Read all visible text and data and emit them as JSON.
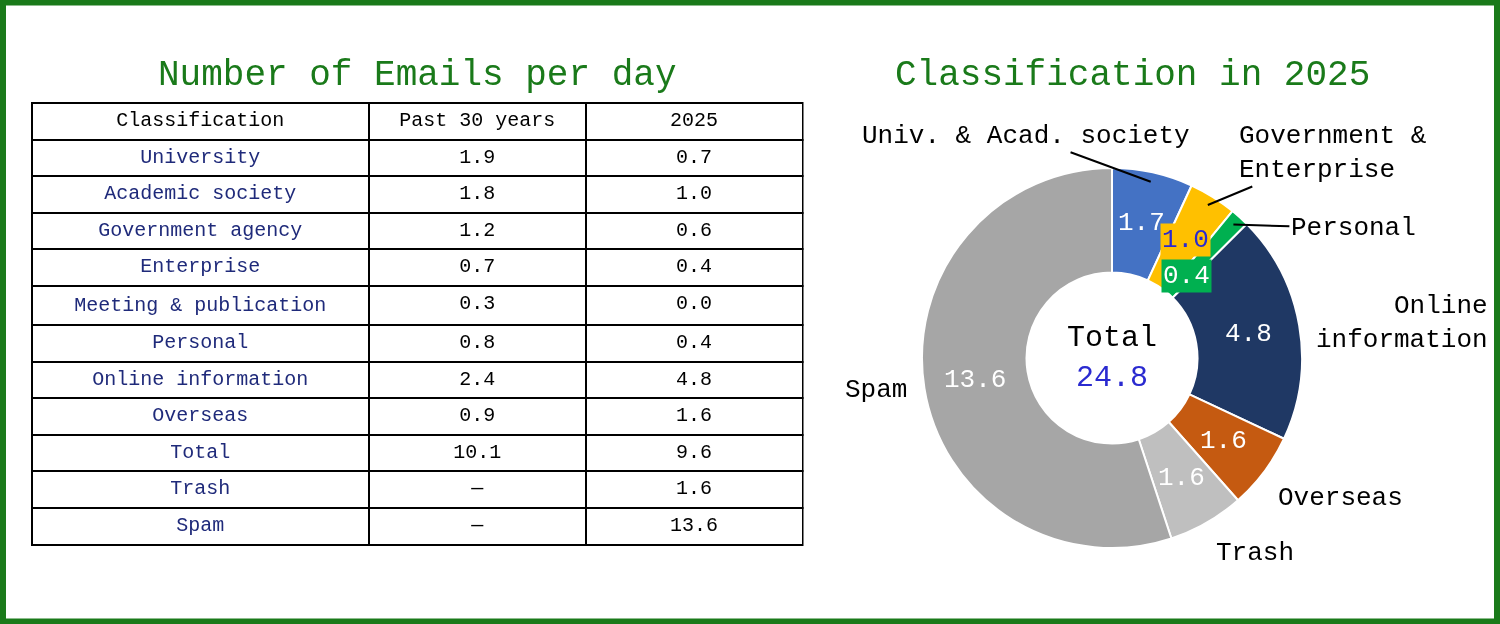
{
  "chart_data": [
    {
      "type": "other",
      "title": "Number of Emails per day",
      "annotations": [
        "Classification"
      ],
      "categories": [
        "Past 30 years",
        "2025"
      ],
      "y_categories": [
        "University",
        "Academic society",
        "Government agency",
        "Enterprise",
        "Meeting & publication",
        "Personal",
        "Online information",
        "Overseas",
        "Total",
        "Trash",
        "Spam"
      ],
      "cell_labels": [
        [
          "1.9",
          "0.7"
        ],
        [
          "1.8",
          "1.0"
        ],
        [
          "1.2",
          "0.6"
        ],
        [
          "0.7",
          "0.4"
        ],
        [
          "0.3",
          "0.0"
        ],
        [
          "0.8",
          "0.4"
        ],
        [
          "2.4",
          "4.8"
        ],
        [
          "0.9",
          "1.6"
        ],
        [
          "10.1",
          "9.6"
        ],
        [
          "—",
          "1.6"
        ],
        [
          "—",
          "13.6"
        ]
      ]
    },
    {
      "type": "donut",
      "title": "Classification in 2025",
      "annotations": [
        "Total",
        "24.8"
      ],
      "categories": [
        "Univ. & Acad. society",
        "Government &\nEnterprise",
        "Personal",
        "Online\ninformation",
        "Overseas",
        "Trash",
        "Spam"
      ],
      "values": [
        1.7,
        1.0,
        0.4,
        4.8,
        1.6,
        1.6,
        13.6
      ],
      "colors": [
        "#4472c4",
        "#ffc000",
        "#00b050",
        "#1f3864",
        "#c55a11",
        "#bfbfbf",
        "#a6a6a6"
      ],
      "value_labels": [
        "1.7",
        "1.0",
        "0.4",
        "4.8",
        "1.6",
        "1.6",
        "13.6"
      ]
    }
  ]
}
